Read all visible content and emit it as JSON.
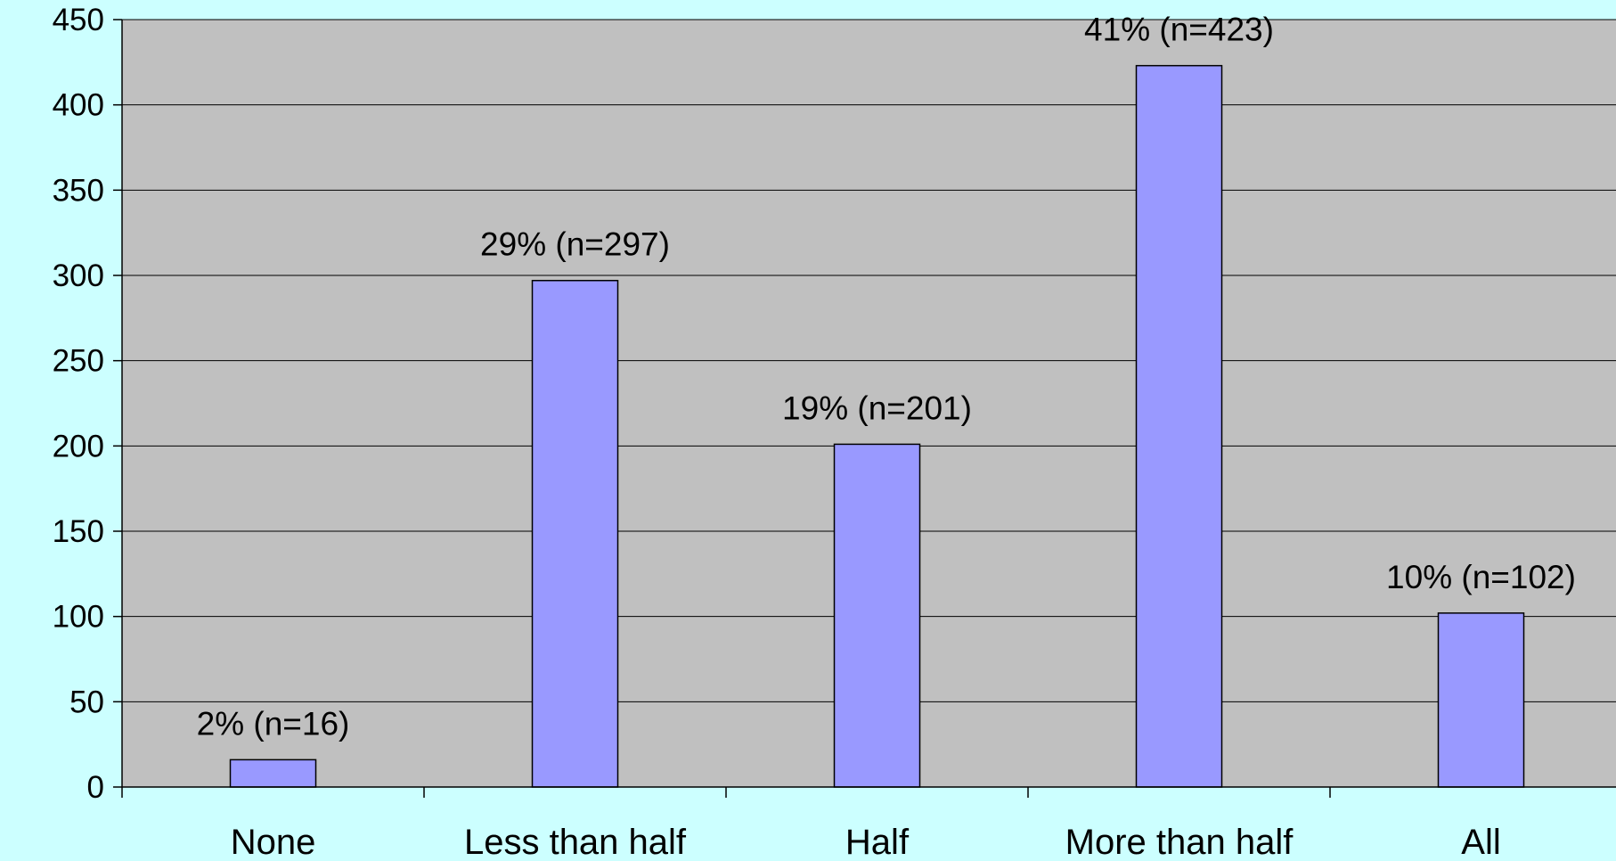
{
  "chart_data": {
    "type": "bar",
    "categories": [
      "None",
      "Less than half",
      "Half",
      "More than half",
      "All"
    ],
    "values": [
      16,
      297,
      201,
      423,
      102
    ],
    "data_labels": [
      "2% (n=16)",
      "29% (n=297)",
      "19% (n=201)",
      "41% (n=423)",
      "10% (n=102)"
    ],
    "y_ticks": [
      "0",
      "50",
      "100",
      "150",
      "200",
      "250",
      "300",
      "350",
      "400",
      "450"
    ],
    "ylim": [
      0,
      450
    ],
    "grid": true,
    "legend": "none",
    "title": "",
    "xlabel": "",
    "ylabel": ""
  },
  "colors": {
    "page_background": "#ccffff",
    "plot_background": "#c0c0c0",
    "bar_fill": "#9999ff",
    "bar_stroke": "#000000",
    "gridline": "#000000"
  }
}
